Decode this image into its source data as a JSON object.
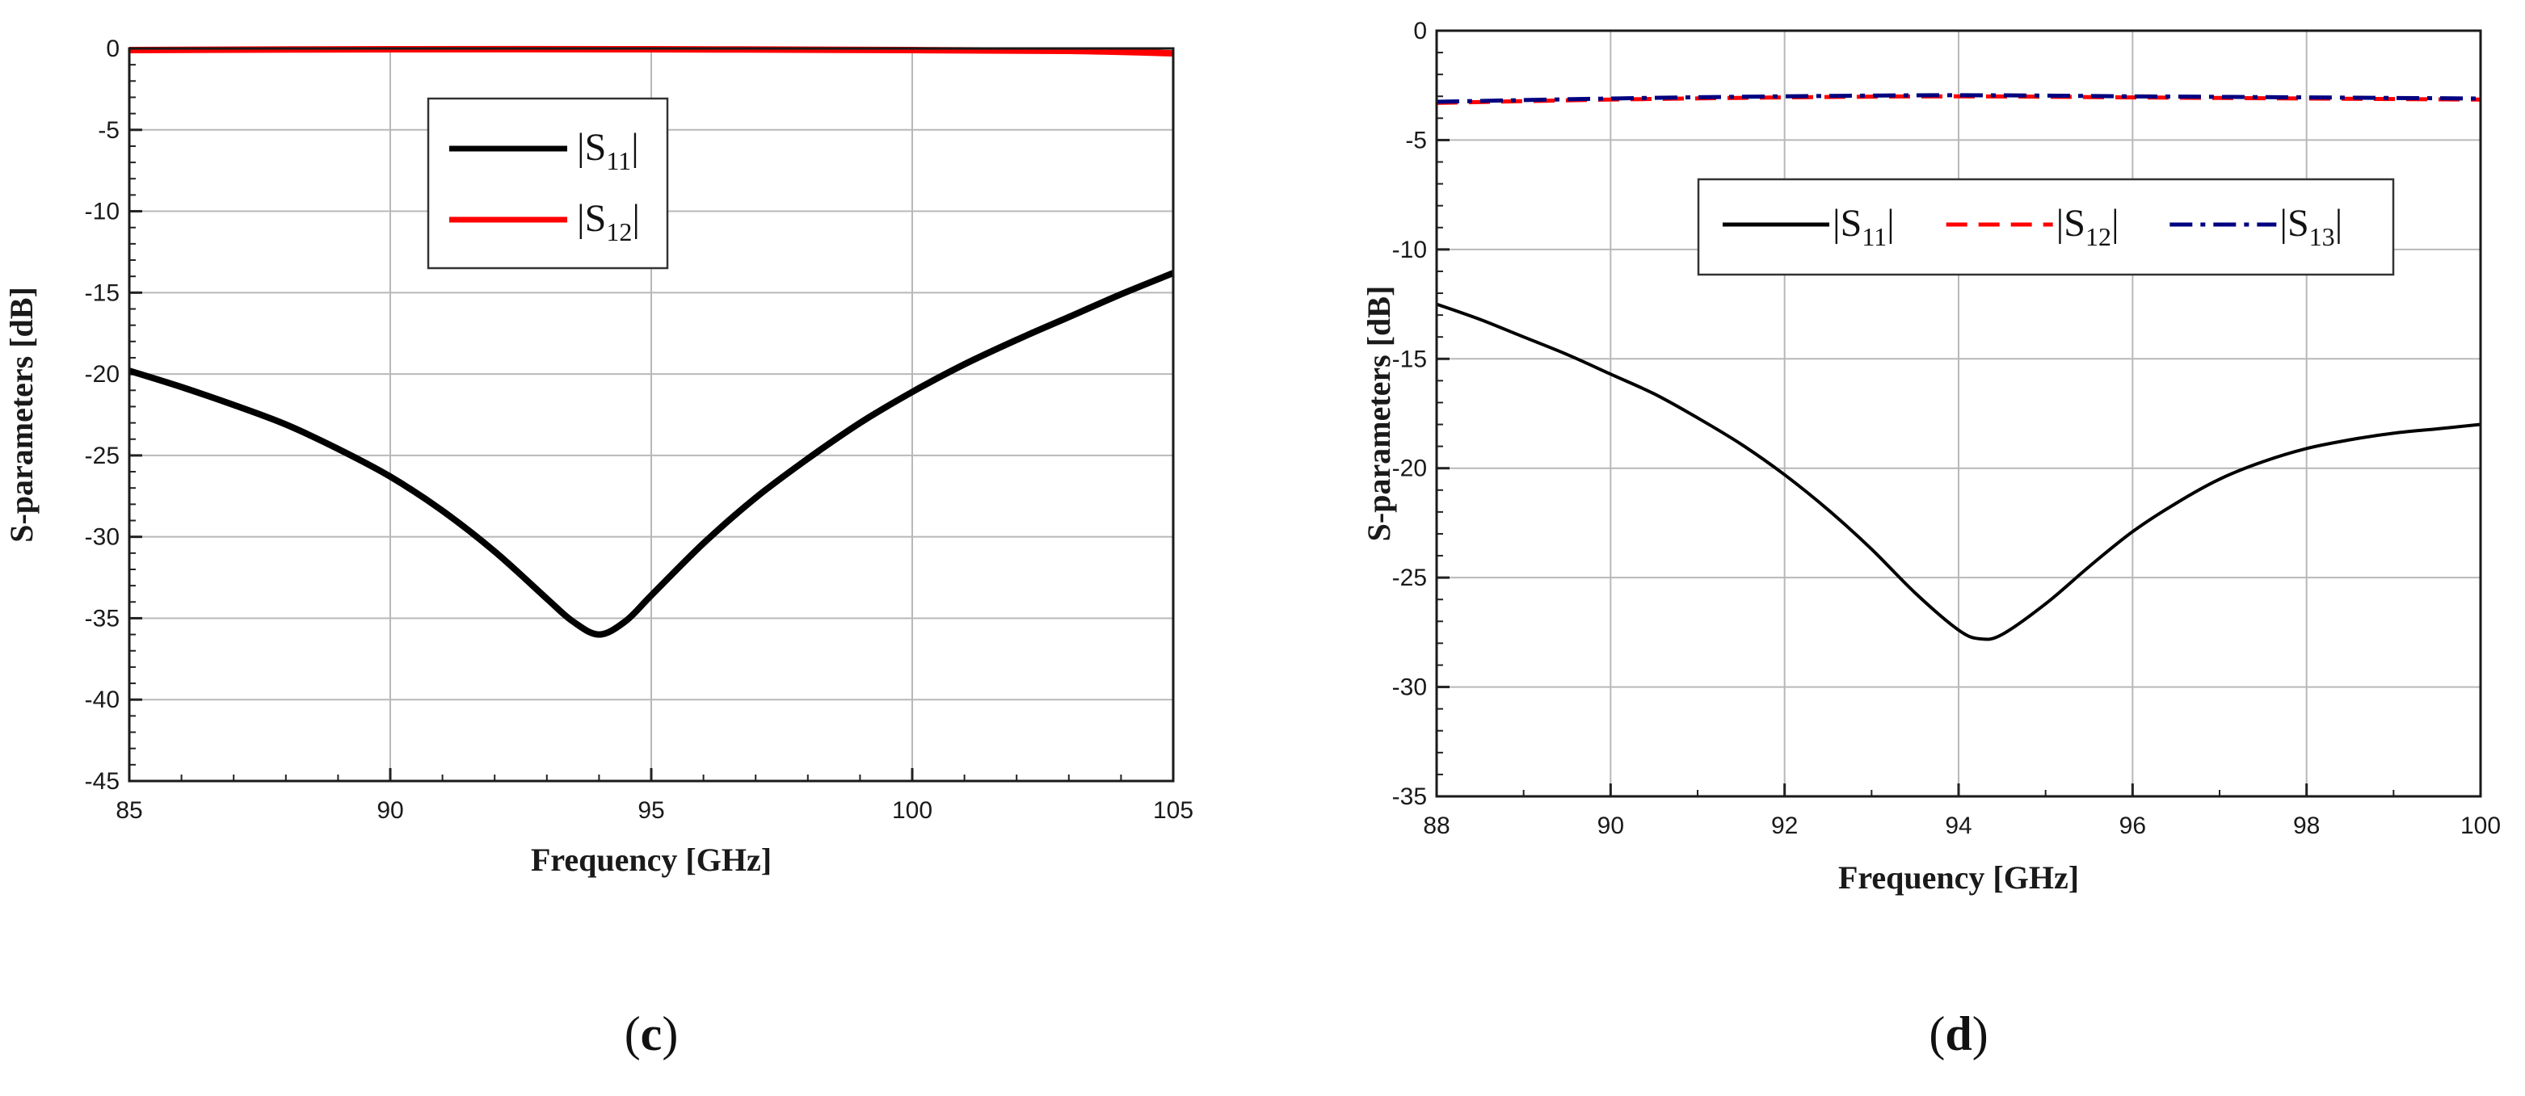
{
  "chart_data": [
    {
      "type": "line",
      "panel_label": "c",
      "xlabel": "Frequency [GHz]",
      "ylabel": "S-parameters [dB]",
      "xlim": [
        85,
        105
      ],
      "ylim": [
        -45,
        0
      ],
      "xticks": [
        85,
        90,
        95,
        100,
        105
      ],
      "yticks": [
        0,
        -5,
        -10,
        -15,
        -20,
        -25,
        -30,
        -35,
        -40,
        -45
      ],
      "x_minor_step": 1,
      "y_minor_step": 1,
      "grid": true,
      "legend_position": "top-center",
      "series": [
        {
          "name": "S11",
          "color": "#000000",
          "dash": "solid",
          "x": [
            85,
            86,
            87,
            88,
            89,
            90,
            91,
            92,
            93,
            93.5,
            94,
            94.5,
            95,
            96,
            97,
            98,
            99,
            100,
            101,
            102,
            103,
            104,
            105
          ],
          "y": [
            -19.8,
            -20.8,
            -21.9,
            -23.1,
            -24.6,
            -26.3,
            -28.4,
            -30.9,
            -33.8,
            -35.2,
            -36.0,
            -35.2,
            -33.6,
            -30.4,
            -27.6,
            -25.2,
            -23.0,
            -21.1,
            -19.4,
            -17.9,
            -16.5,
            -15.1,
            -13.8
          ]
        },
        {
          "name": "S12",
          "color": "#ff0000",
          "dash": "solid",
          "x": [
            85,
            90,
            95,
            100,
            103,
            105
          ],
          "y": [
            -0.1,
            -0.05,
            -0.05,
            -0.1,
            -0.15,
            -0.3
          ]
        }
      ]
    },
    {
      "type": "line",
      "panel_label": "d",
      "xlabel": "Frequency [GHz]",
      "ylabel": "S-parameters [dB]",
      "xlim": [
        88,
        100
      ],
      "ylim": [
        -35,
        0
      ],
      "xticks": [
        88,
        90,
        92,
        94,
        96,
        98,
        100
      ],
      "yticks": [
        0,
        -5,
        -10,
        -15,
        -20,
        -25,
        -30,
        -35
      ],
      "x_minor_step": 1,
      "y_minor_step": 1,
      "grid": true,
      "legend_position": "top-center",
      "series": [
        {
          "name": "S11",
          "color": "#000000",
          "dash": "solid",
          "x": [
            88,
            88.5,
            89,
            89.5,
            90,
            90.5,
            91,
            91.5,
            92,
            92.5,
            93,
            93.5,
            94,
            94.25,
            94.5,
            95,
            95.5,
            96,
            96.5,
            97,
            97.5,
            98,
            98.5,
            99,
            99.5,
            100
          ],
          "y": [
            -12.5,
            -13.2,
            -14.0,
            -14.8,
            -15.7,
            -16.6,
            -17.7,
            -18.9,
            -20.3,
            -21.9,
            -23.7,
            -25.7,
            -27.4,
            -27.8,
            -27.6,
            -26.2,
            -24.5,
            -22.9,
            -21.6,
            -20.5,
            -19.7,
            -19.1,
            -18.7,
            -18.4,
            -18.2,
            -18.0
          ]
        },
        {
          "name": "S12",
          "color": "#ff0000",
          "dash": "dash",
          "x": [
            88,
            90,
            92,
            94,
            96,
            98,
            100
          ],
          "y": [
            -3.3,
            -3.15,
            -3.05,
            -3.0,
            -3.05,
            -3.1,
            -3.15
          ]
        },
        {
          "name": "S13",
          "color": "#000080",
          "dash": "dashdot",
          "x": [
            88,
            90,
            92,
            94,
            96,
            98,
            100
          ],
          "y": [
            -3.25,
            -3.1,
            -3.0,
            -2.95,
            -3.0,
            -3.05,
            -3.1
          ]
        }
      ]
    }
  ]
}
